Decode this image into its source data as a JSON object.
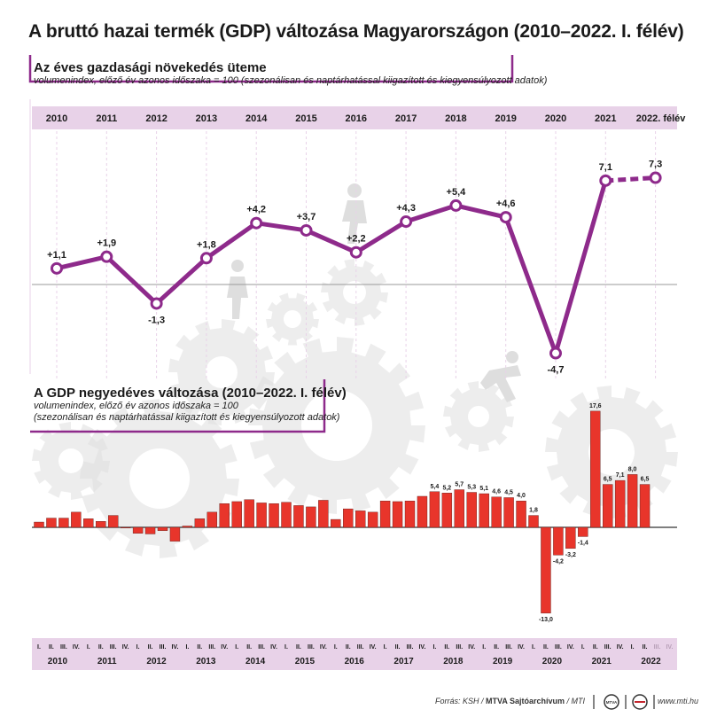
{
  "title": "A bruttó hazai termék (GDP) változása Magyarországon (2010–2022. I. félév)",
  "annual": {
    "title": "Az éves gazdasági növekedés üteme",
    "note": "volumenindex, előző év azonos időszaka = 100 (szezonálisan és naptárhatással kiigazított és kiegyensúlyozott adatok)"
  },
  "quarterly": {
    "title": "A GDP negyedéves változása (2010–2022. I. félév)",
    "note_line1": "volumenindex, előző év azonos időszaka = 100",
    "note_line2": "(szezonálisan és naptárhatással kiigazított és kiegyensúlyozott adatok)"
  },
  "footer": {
    "source_prefix": "Forrás: KSH / ",
    "source_bold": "MTVA Sajtóarchívum",
    "source_suffix": " / MTI",
    "url": "www.mti.hu",
    "logo_text": "MTVA"
  },
  "colors": {
    "accent": "#8e2a8b",
    "band": "#e8d2e8",
    "bar": "#e8352b",
    "gear": "#dedede"
  },
  "chart_data": [
    {
      "type": "line",
      "categories": [
        "2010",
        "2011",
        "2012",
        "2013",
        "2014",
        "2015",
        "2016",
        "2017",
        "2018",
        "2019",
        "2020",
        "2021",
        "2022. félév"
      ],
      "values": [
        1.1,
        1.9,
        -1.3,
        1.8,
        4.2,
        3.7,
        2.2,
        4.3,
        5.4,
        4.6,
        -4.7,
        7.1,
        7.3
      ],
      "labels": [
        "+1,1",
        "+1,9",
        "-1,3",
        "+1,8",
        "+4,2",
        "+3,7",
        "+2,2",
        "+4,3",
        "+5,4",
        "+4,6",
        "-4,7",
        "7,1",
        "7,3"
      ],
      "dashed_last_segment": true
    },
    {
      "type": "bar",
      "years": [
        "2010",
        "2011",
        "2012",
        "2013",
        "2014",
        "2015",
        "2016",
        "2017",
        "2018",
        "2019",
        "2020",
        "2021",
        "2022"
      ],
      "quarter_labels": [
        "I.",
        "II.",
        "III.",
        "IV."
      ],
      "values": [
        0.8,
        1.4,
        1.4,
        2.3,
        1.3,
        0.9,
        1.8,
        -0.1,
        -0.9,
        -1.0,
        -0.5,
        -2.1,
        0.2,
        1.3,
        2.3,
        3.6,
        3.9,
        4.2,
        3.7,
        3.6,
        3.8,
        3.3,
        3.1,
        4.1,
        1.2,
        2.8,
        2.5,
        2.3,
        4.0,
        3.9,
        4.0,
        4.7,
        5.4,
        5.2,
        5.7,
        5.3,
        5.1,
        4.6,
        4.5,
        4.0,
        1.8,
        -13.0,
        -4.2,
        -3.2,
        -1.4,
        17.6,
        6.5,
        7.1,
        8.0,
        6.5
      ],
      "value_labels": [
        "",
        "",
        "",
        "",
        "",
        "",
        "",
        "",
        "",
        "",
        "",
        "",
        "",
        "",
        "",
        "",
        "",
        "",
        "",
        "",
        "",
        "",
        "",
        "",
        "",
        "",
        "",
        "",
        "",
        "",
        "",
        "",
        "5,4",
        "5,2",
        "5,7",
        "5,3",
        "5,1",
        "4,6",
        "4,5",
        "4,0",
        "1,8",
        "-13,0",
        "-4,2",
        "-3,2",
        "-1,4",
        "17,6",
        "6,5",
        "7,1",
        "8,0",
        "6,5"
      ],
      "empty_quarters": [
        "III.",
        "IV."
      ]
    }
  ]
}
